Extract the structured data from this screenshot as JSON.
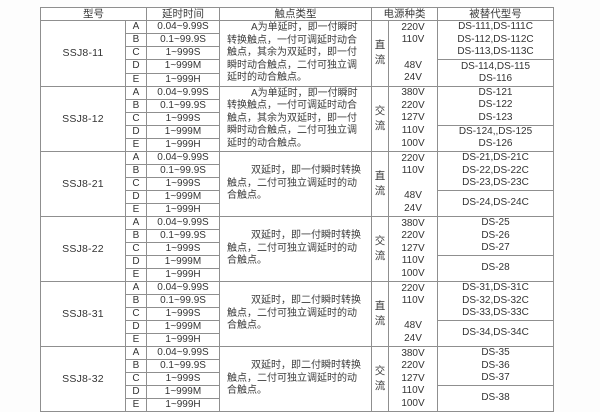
{
  "colors": {
    "border": "#8f8f8f",
    "text": "#333333",
    "background": "#fdfdfd"
  },
  "table": {
    "headers": {
      "model": "型号",
      "delay": "延时时间",
      "contact": "触点类型",
      "power": "电源种类",
      "replaced": "被替代型号"
    },
    "blocks": [
      {
        "model": "SSJ8-11",
        "rows": [
          {
            "letter": "A",
            "delay": "0.04~9.99S"
          },
          {
            "letter": "B",
            "delay": "0.1~99.9S"
          },
          {
            "letter": "C",
            "delay": "1~999S"
          },
          {
            "letter": "D",
            "delay": "1~999M"
          },
          {
            "letter": "E",
            "delay": "1~999H"
          }
        ],
        "contact": "A为单延时，即一付瞬时转换触点，一付可调延时动合触点，其余为双延时，即一付瞬时动合触点，二付可独立调延时的动合触点。",
        "power_kind": "直流",
        "voltages": [
          "220V",
          "110V",
          "",
          "48V",
          "24V"
        ],
        "replaced_top": [
          "DS-111,DS-111C",
          "DS-112,DS-112C",
          "DS-113,DS-113C"
        ],
        "replaced_bottom": [
          "DS-114,DS-115",
          "DS-116"
        ]
      },
      {
        "model": "SSJ8-12",
        "rows": [
          {
            "letter": "A",
            "delay": "0.04~9.99S"
          },
          {
            "letter": "B",
            "delay": "0.1~99.9S"
          },
          {
            "letter": "C",
            "delay": "1~999S"
          },
          {
            "letter": "D",
            "delay": "1~999M"
          },
          {
            "letter": "E",
            "delay": "1~999H"
          }
        ],
        "contact": "A为单延时，即一付瞬时转换触点，一付可调延时动合触点，其余为双延时，即一付瞬时动合触点，二付可独立调延时的动合触点。",
        "power_kind": "交流",
        "voltages": [
          "380V",
          "220V",
          "127V",
          "110V",
          "100V"
        ],
        "replaced_top": [
          "DS-121",
          "DS-122",
          "DS-123"
        ],
        "replaced_bottom": [
          "DS-124,,DS-125",
          "DS-126"
        ]
      },
      {
        "model": "SSJ8-21",
        "rows": [
          {
            "letter": "A",
            "delay": "0.04~9.99S"
          },
          {
            "letter": "B",
            "delay": "0.1~99.9S"
          },
          {
            "letter": "C",
            "delay": "1~999S"
          },
          {
            "letter": "D",
            "delay": "1~999M"
          },
          {
            "letter": "E",
            "delay": "1~999H"
          }
        ],
        "contact": "双延时，即一付瞬时转换触点，二付可独立调延时的动合触点。",
        "power_kind": "直流",
        "voltages": [
          "220V",
          "110V",
          "",
          "48V",
          "24V"
        ],
        "replaced_top": [
          "DS-21,DS-21C",
          "DS-22,DS-22C",
          "DS-23,DS-23C"
        ],
        "replaced_bottom": [
          "DS-24,DS-24C"
        ]
      },
      {
        "model": "SSJ8-22",
        "rows": [
          {
            "letter": "A",
            "delay": "0.04~9.99S"
          },
          {
            "letter": "B",
            "delay": "0.1~99.9S"
          },
          {
            "letter": "C",
            "delay": "1~999S"
          },
          {
            "letter": "D",
            "delay": "1~999M"
          },
          {
            "letter": "E",
            "delay": "1~999H"
          }
        ],
        "contact": "双延时，即一付瞬时转换触点，二付可独立调延时的动合触点。",
        "power_kind": "交流",
        "voltages": [
          "380V",
          "220V",
          "127V",
          "110V",
          "100V"
        ],
        "replaced_top": [
          "DS-25",
          "DS-26",
          "DS-27"
        ],
        "replaced_bottom": [
          "DS-28"
        ]
      },
      {
        "model": "SSJ8-31",
        "rows": [
          {
            "letter": "A",
            "delay": "0.04~9.99S"
          },
          {
            "letter": "B",
            "delay": "0.1~99.9S"
          },
          {
            "letter": "C",
            "delay": "1~999S"
          },
          {
            "letter": "D",
            "delay": "1~999M"
          },
          {
            "letter": "E",
            "delay": "1~999H"
          }
        ],
        "contact": "双延时，即二付瞬时转换触点，二付可独立调延时的动合触点。",
        "power_kind": "直流",
        "voltages": [
          "220V",
          "110V",
          "",
          "48V",
          "24V"
        ],
        "replaced_top": [
          "DS-31,DS-31C",
          "DS-32,DS-32C",
          "DS-33,DS-33C"
        ],
        "replaced_bottom": [
          "DS-34,DS-34C"
        ]
      },
      {
        "model": "SSJ8-32",
        "rows": [
          {
            "letter": "A",
            "delay": "0.04~9.99S"
          },
          {
            "letter": "B",
            "delay": "0.1~99.9S"
          },
          {
            "letter": "C",
            "delay": "1~999S"
          },
          {
            "letter": "D",
            "delay": "1~999M"
          },
          {
            "letter": "E",
            "delay": "1~999H"
          }
        ],
        "contact": "双延时，即二付瞬时转换触点，二付可独立调延时的动合触点。",
        "power_kind": "交流",
        "voltages": [
          "380V",
          "220V",
          "127V",
          "110V",
          "100V"
        ],
        "replaced_top": [
          "DS-35",
          "DS-36",
          "DS-37"
        ],
        "replaced_bottom": [
          "DS-38"
        ]
      }
    ]
  }
}
